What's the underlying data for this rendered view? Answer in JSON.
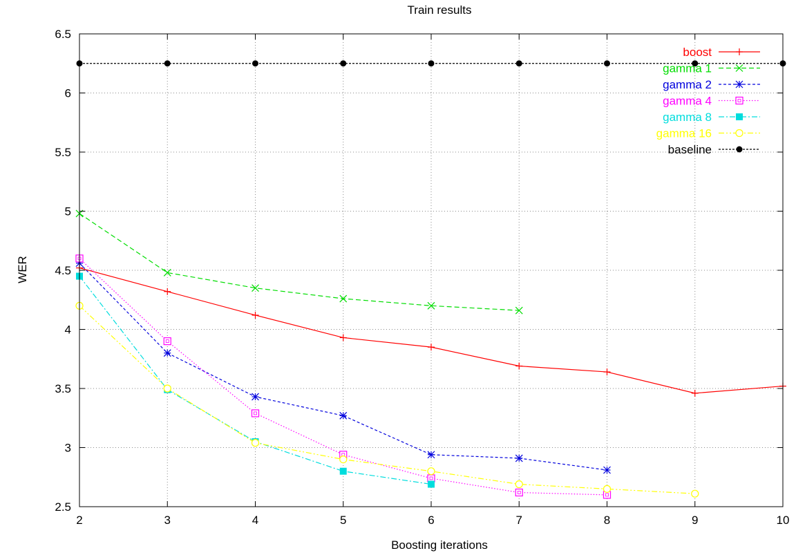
{
  "chart_data": {
    "type": "line",
    "title": "Train results",
    "xlabel": "Boosting iterations",
    "ylabel": "WER",
    "xlim": [
      2,
      10
    ],
    "ylim": [
      2.5,
      6.5
    ],
    "xticks": [
      "2",
      "3",
      "4",
      "5",
      "6",
      "7",
      "8",
      "9",
      "10"
    ],
    "yticks": [
      "2.5",
      "3",
      "3.5",
      "4",
      "4.5",
      "5",
      "5.5",
      "6",
      "6.5"
    ],
    "grid": true,
    "legend_position": "top-right",
    "series": [
      {
        "name": "boost",
        "color": "#ff0000",
        "marker": "plus",
        "dash": "solid",
        "x": [
          2,
          3,
          4,
          5,
          6,
          7,
          8,
          9,
          10
        ],
        "y": [
          4.52,
          4.32,
          4.12,
          3.93,
          3.85,
          3.69,
          3.64,
          3.46,
          3.52
        ]
      },
      {
        "name": "gamma 1",
        "color": "#00dd00",
        "marker": "x",
        "dash": "dashed",
        "x": [
          2,
          3,
          4,
          5,
          6,
          7
        ],
        "y": [
          4.98,
          4.48,
          4.35,
          4.26,
          4.2,
          4.16
        ]
      },
      {
        "name": "gamma 2",
        "color": "#0000dd",
        "marker": "star",
        "dash": "short-dash",
        "x": [
          2,
          3,
          4,
          5,
          6,
          7,
          8
        ],
        "y": [
          4.56,
          3.8,
          3.43,
          3.27,
          2.94,
          2.91,
          2.81
        ]
      },
      {
        "name": "gamma 4",
        "color": "#ff00ff",
        "marker": "open-square",
        "dash": "dotted",
        "x": [
          2,
          3,
          4,
          5,
          6,
          7,
          8
        ],
        "y": [
          4.6,
          3.9,
          3.29,
          2.94,
          2.74,
          2.62,
          2.6
        ]
      },
      {
        "name": "gamma 8",
        "color": "#00dddd",
        "marker": "filled-square",
        "dash": "dash-dot",
        "x": [
          2,
          3,
          4,
          5,
          6
        ],
        "y": [
          4.45,
          3.49,
          3.05,
          2.8,
          2.69
        ]
      },
      {
        "name": "gamma 16",
        "color": "#ffff00",
        "marker": "open-circle",
        "dash": "dash-dot-dot",
        "x": [
          2,
          3,
          4,
          5,
          6,
          7,
          8,
          9
        ],
        "y": [
          4.2,
          3.5,
          3.04,
          2.9,
          2.8,
          2.69,
          2.65,
          2.61
        ]
      },
      {
        "name": "baseline",
        "color": "#000000",
        "marker": "filled-circle",
        "dash": "fine-dash",
        "x": [
          2,
          3,
          4,
          5,
          6,
          7,
          8,
          9,
          10
        ],
        "y": [
          6.25,
          6.25,
          6.25,
          6.25,
          6.25,
          6.25,
          6.25,
          6.25,
          6.25
        ]
      }
    ]
  }
}
